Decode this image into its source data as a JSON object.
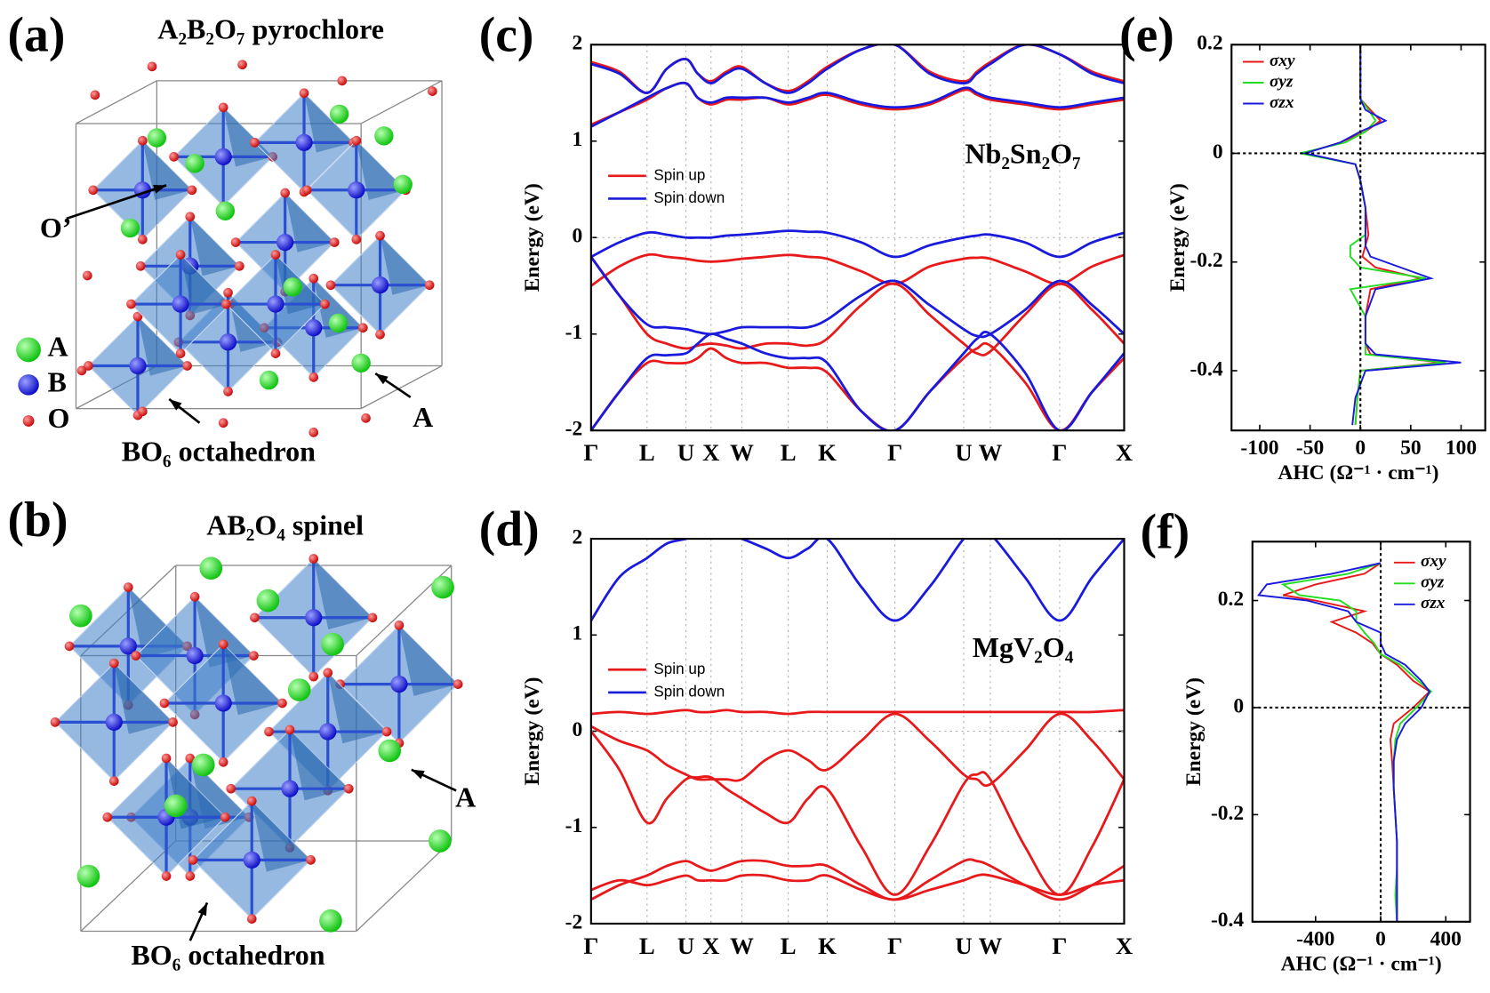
{
  "structures": [
    {
      "label": "(a)",
      "title": "A₂B₂O₇ pyrochlore",
      "annotations": [
        "O’",
        "A",
        "BO₆ octahedron"
      ],
      "legend": [
        "A",
        "B",
        "O"
      ]
    },
    {
      "label": "(b)",
      "title": "AB₂O₄ spinel",
      "annotations": [
        "A",
        "BO₆ octahedron"
      ]
    }
  ],
  "chart_data": [
    {
      "type": "band",
      "label": "(c)",
      "annotation": "Nb₂Sn₂O₇",
      "ylabel": "Energy (eV)",
      "legend": "center left",
      "grid": true,
      "x": [
        0,
        0.053,
        0.105,
        0.142,
        0.178,
        0.2,
        0.225,
        0.254,
        0.283,
        0.327,
        0.37,
        0.407,
        0.443,
        0.507,
        0.57,
        0.635,
        0.699,
        0.724,
        0.749,
        0.814,
        0.879,
        0.94,
        1
      ],
      "xlim": [
        0,
        1
      ],
      "xticks": [
        {
          "value": 0,
          "label": "Γ"
        },
        {
          "value": 0.105,
          "label": "L"
        },
        {
          "value": 0.178,
          "label": "U"
        },
        {
          "value": 0.225,
          "label": "X"
        },
        {
          "value": 0.283,
          "label": "W"
        },
        {
          "value": 0.37,
          "label": "L"
        },
        {
          "value": 0.443,
          "label": "K"
        },
        {
          "value": 0.57,
          "label": "Γ"
        },
        {
          "value": 0.699,
          "label": "U"
        },
        {
          "value": 0.749,
          "label": "W"
        },
        {
          "value": 0.879,
          "label": "Γ"
        },
        {
          "value": 1,
          "label": "X"
        }
      ],
      "ylim": [
        -2,
        2
      ],
      "yticks": [
        -2,
        -1,
        0,
        1,
        2
      ],
      "series": [
        {
          "name": "Spin up",
          "color": "#e8191b",
          "values": [
            [
              -0.5,
              -0.3,
              -0.18,
              -0.2,
              -0.22,
              -0.24,
              -0.25,
              -0.24,
              -0.22,
              -0.2,
              -0.18,
              -0.2,
              -0.22,
              -0.35,
              -0.48,
              -0.3,
              -0.22,
              -0.21,
              -0.22,
              -0.35,
              -0.48,
              -0.3,
              -0.18
            ],
            [
              -0.2,
              -0.6,
              -1.0,
              -1.1,
              -1.15,
              -1.12,
              -1.1,
              -1.12,
              -1.15,
              -1.1,
              -1.1,
              -1.12,
              -1.05,
              -0.7,
              -0.48,
              -0.8,
              -1.1,
              -1.2,
              -1.18,
              -0.8,
              -0.48,
              -0.75,
              -1.1
            ],
            [
              -2.0,
              -1.6,
              -1.3,
              -1.3,
              -1.3,
              -1.25,
              -1.15,
              -1.25,
              -1.3,
              -1.3,
              -1.35,
              -1.35,
              -1.4,
              -1.8,
              -2.0,
              -1.6,
              -1.25,
              -1.15,
              -1.12,
              -1.5,
              -2.0,
              -1.6,
              -1.25
            ],
            [
              1.17,
              1.3,
              1.43,
              1.55,
              1.6,
              1.45,
              1.38,
              1.43,
              1.43,
              1.45,
              1.38,
              1.43,
              1.48,
              1.38,
              1.33,
              1.38,
              1.53,
              1.48,
              1.43,
              1.38,
              1.33,
              1.38,
              1.43
            ],
            [
              1.82,
              1.72,
              1.5,
              1.75,
              1.85,
              1.7,
              1.62,
              1.72,
              1.77,
              1.6,
              1.52,
              1.62,
              1.77,
              1.95,
              2.0,
              1.72,
              1.62,
              1.72,
              1.82,
              2.0,
              1.9,
              1.72,
              1.62
            ]
          ]
        },
        {
          "name": "Spin down",
          "color": "#1a1adc",
          "values": [
            [
              -0.2,
              -0.05,
              0.05,
              0.03,
              0.0,
              0.0,
              0.0,
              0.02,
              0.03,
              0.05,
              0.07,
              0.06,
              0.05,
              -0.05,
              -0.2,
              -0.08,
              0.0,
              0.02,
              0.03,
              -0.05,
              -0.2,
              -0.05,
              0.05
            ],
            [
              -0.2,
              -0.6,
              -0.9,
              -0.93,
              -0.95,
              -0.98,
              -1.0,
              -0.97,
              -0.93,
              -0.93,
              -0.93,
              -0.93,
              -0.85,
              -0.6,
              -0.45,
              -0.7,
              -0.95,
              -1.02,
              -1.0,
              -0.75,
              -0.45,
              -0.7,
              -1.0
            ],
            [
              -2.0,
              -1.6,
              -1.25,
              -1.22,
              -1.2,
              -1.1,
              -1.0,
              -1.05,
              -1.1,
              -1.2,
              -1.25,
              -1.25,
              -1.3,
              -1.8,
              -2.0,
              -1.6,
              -1.2,
              -1.05,
              -1.0,
              -1.4,
              -2.0,
              -1.6,
              -1.2
            ],
            [
              1.15,
              1.3,
              1.45,
              1.55,
              1.6,
              1.45,
              1.4,
              1.45,
              1.45,
              1.45,
              1.4,
              1.45,
              1.5,
              1.4,
              1.35,
              1.4,
              1.55,
              1.5,
              1.45,
              1.4,
              1.35,
              1.4,
              1.45
            ],
            [
              1.8,
              1.7,
              1.5,
              1.75,
              1.85,
              1.7,
              1.6,
              1.7,
              1.75,
              1.6,
              1.5,
              1.6,
              1.75,
              1.95,
              2.0,
              1.7,
              1.6,
              1.7,
              1.8,
              2.0,
              1.9,
              1.7,
              1.6
            ]
          ]
        }
      ]
    },
    {
      "type": "band",
      "label": "(d)",
      "annotation": "MgV₂O₄",
      "ylabel": "Energy (eV)",
      "legend": "center left",
      "grid": true,
      "x": [
        0,
        0.053,
        0.105,
        0.142,
        0.178,
        0.2,
        0.225,
        0.254,
        0.283,
        0.327,
        0.37,
        0.407,
        0.443,
        0.507,
        0.57,
        0.635,
        0.699,
        0.724,
        0.749,
        0.814,
        0.879,
        0.94,
        1
      ],
      "xlim": [
        0,
        1
      ],
      "xticks": [
        {
          "value": 0,
          "label": "Γ"
        },
        {
          "value": 0.105,
          "label": "L"
        },
        {
          "value": 0.178,
          "label": "U"
        },
        {
          "value": 0.225,
          "label": "X"
        },
        {
          "value": 0.283,
          "label": "W"
        },
        {
          "value": 0.37,
          "label": "L"
        },
        {
          "value": 0.443,
          "label": "K"
        },
        {
          "value": 0.57,
          "label": "Γ"
        },
        {
          "value": 0.699,
          "label": "U"
        },
        {
          "value": 0.749,
          "label": "W"
        },
        {
          "value": 0.879,
          "label": "Γ"
        },
        {
          "value": 1,
          "label": "X"
        }
      ],
      "ylim": [
        -2,
        2
      ],
      "yticks": [
        -2,
        -1,
        0,
        1,
        2
      ],
      "series": [
        {
          "name": "Spin up",
          "color": "#e8191b",
          "values": [
            [
              0.18,
              0.2,
              0.18,
              0.2,
              0.22,
              0.2,
              0.2,
              0.22,
              0.2,
              0.2,
              0.18,
              0.2,
              0.2,
              0.2,
              0.2,
              0.2,
              0.2,
              0.2,
              0.2,
              0.2,
              0.2,
              0.2,
              0.22
            ],
            [
              0.05,
              -0.1,
              -0.2,
              -0.35,
              -0.45,
              -0.5,
              -0.5,
              -0.5,
              -0.5,
              -0.3,
              -0.2,
              -0.3,
              -0.4,
              -0.1,
              0.18,
              -0.1,
              -0.45,
              -0.5,
              -0.55,
              -0.2,
              0.18,
              -0.1,
              -0.5
            ],
            [
              0.0,
              -0.4,
              -0.95,
              -0.7,
              -0.5,
              -0.48,
              -0.48,
              -0.6,
              -0.7,
              -0.85,
              -0.95,
              -0.7,
              -0.6,
              -1.2,
              -1.7,
              -1.2,
              -0.55,
              -0.45,
              -0.5,
              -1.2,
              -1.7,
              -1.2,
              -0.5
            ],
            [
              -1.75,
              -1.6,
              -1.5,
              -1.4,
              -1.35,
              -1.4,
              -1.45,
              -1.4,
              -1.35,
              -1.35,
              -1.4,
              -1.4,
              -1.4,
              -1.6,
              -1.75,
              -1.55,
              -1.35,
              -1.35,
              -1.4,
              -1.6,
              -1.75,
              -1.6,
              -1.4
            ],
            [
              -1.65,
              -1.55,
              -1.6,
              -1.55,
              -1.5,
              -1.55,
              -1.55,
              -1.55,
              -1.5,
              -1.5,
              -1.55,
              -1.55,
              -1.5,
              -1.65,
              -1.75,
              -1.65,
              -1.55,
              -1.5,
              -1.5,
              -1.6,
              -1.7,
              -1.6,
              -1.55
            ]
          ]
        },
        {
          "name": "Spin down",
          "color": "#1a1adc",
          "values": [
            [
              1.15,
              1.6,
              1.8,
              1.95,
              2.0,
              2.05,
              2.05,
              2.05,
              2.0,
              1.9,
              1.8,
              1.9,
              2.0,
              1.5,
              1.15,
              1.5,
              2.0,
              2.05,
              2.05,
              1.6,
              1.15,
              1.6,
              2.0
            ]
          ]
        }
      ]
    },
    {
      "type": "line",
      "orientation": "horizontal",
      "label": "(e)",
      "xlabel": "AHC (Ω⁻¹ · cm⁻¹)",
      "ylabel": "Energy (eV)",
      "legend": "upper left",
      "y": [
        0.2,
        0.15,
        0.1,
        0.08,
        0.06,
        0.04,
        0.02,
        0.0,
        -0.02,
        -0.05,
        -0.1,
        -0.15,
        -0.17,
        -0.19,
        -0.21,
        -0.23,
        -0.25,
        -0.3,
        -0.35,
        -0.37,
        -0.385,
        -0.4,
        -0.45,
        -0.5
      ],
      "xlim": [
        -128,
        124
      ],
      "xticks": [
        -100,
        -50,
        0,
        50,
        100
      ],
      "ylim": [
        -0.51,
        0.2
      ],
      "yticks": [
        -0.4,
        -0.2,
        0,
        0.2
      ],
      "series": [
        {
          "name": "σxy",
          "color": "#e8191b",
          "values": [
            0,
            0,
            0,
            10,
            20,
            5,
            -20,
            -55,
            -5,
            0,
            5,
            8,
            5,
            2,
            15,
            60,
            10,
            5,
            5,
            10,
            80,
            0,
            -3,
            -5
          ]
        },
        {
          "name": "σyz",
          "color": "#22dd22",
          "values": [
            0,
            0,
            0,
            8,
            15,
            5,
            -15,
            -60,
            -5,
            0,
            5,
            5,
            -10,
            -10,
            0,
            65,
            -10,
            5,
            5,
            5,
            85,
            0,
            -3,
            -5
          ]
        },
        {
          "name": "σzx",
          "color": "#1a1adc",
          "values": [
            0,
            0,
            0,
            5,
            25,
            0,
            -20,
            -55,
            -5,
            0,
            5,
            5,
            5,
            10,
            40,
            70,
            15,
            5,
            5,
            15,
            100,
            5,
            -5,
            -8
          ]
        }
      ]
    },
    {
      "type": "line",
      "orientation": "horizontal",
      "label": "(f)",
      "xlabel": "AHC (Ω⁻¹ · cm⁻¹)",
      "ylabel": "Energy (eV)",
      "legend": "upper right",
      "y": [
        0.27,
        0.25,
        0.23,
        0.21,
        0.2,
        0.18,
        0.16,
        0.14,
        0.12,
        0.1,
        0.08,
        0.05,
        0.03,
        0.0,
        -0.03,
        -0.06,
        -0.1,
        -0.15,
        -0.2,
        -0.25,
        -0.3,
        -0.35,
        -0.4
      ],
      "xlim": [
        -788,
        549
      ],
      "xticks": [
        -400,
        0,
        400
      ],
      "ylim": [
        -0.4,
        0.31
      ],
      "yticks": [
        -0.4,
        -0.2,
        0,
        0.2
      ],
      "series": [
        {
          "name": "σxy",
          "color": "#e8191b",
          "values": [
            0,
            -100,
            -400,
            -600,
            -400,
            -100,
            -300,
            -150,
            -50,
            0,
            100,
            200,
            300,
            200,
            80,
            60,
            70,
            80,
            90,
            100,
            100,
            100,
            100
          ]
        },
        {
          "name": "σyz",
          "color": "#22dd22",
          "values": [
            0,
            -200,
            -600,
            -500,
            -250,
            -150,
            -150,
            -100,
            -40,
            0,
            120,
            230,
            310,
            220,
            120,
            90,
            80,
            80,
            90,
            100,
            100,
            90,
            100
          ]
        },
        {
          "name": "σzx",
          "color": "#1a1adc",
          "values": [
            0,
            -300,
            -700,
            -750,
            -450,
            -200,
            -150,
            0,
            0,
            30,
            150,
            250,
            300,
            250,
            150,
            100,
            80,
            80,
            90,
            100,
            100,
            100,
            100
          ]
        }
      ]
    }
  ]
}
